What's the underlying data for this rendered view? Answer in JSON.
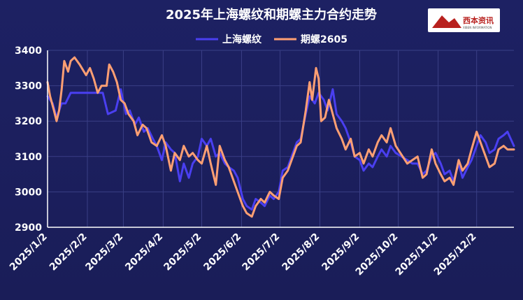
{
  "chart_data": {
    "type": "line",
    "title": "2025年上海螺纹和期螺主力合约走势",
    "ylim": [
      2900,
      3400
    ],
    "yticks": [
      2900,
      3000,
      3100,
      3200,
      3300,
      3400
    ],
    "xlim": [
      "2025-01-02",
      "2025-12-31"
    ],
    "xticks": [
      {
        "date": "2025-01-02",
        "label": "2025/1/2"
      },
      {
        "date": "2025-02-02",
        "label": "2025/2/2"
      },
      {
        "date": "2025-03-02",
        "label": "2025/3/2"
      },
      {
        "date": "2025-04-02",
        "label": "2025/4/2"
      },
      {
        "date": "2025-05-02",
        "label": "2025/5/2"
      },
      {
        "date": "2025-06-02",
        "label": "2025/6/2"
      },
      {
        "date": "2025-07-02",
        "label": "2025/7/2"
      },
      {
        "date": "2025-08-02",
        "label": "2025/8/2"
      },
      {
        "date": "2025-09-02",
        "label": "2025/9/2"
      },
      {
        "date": "2025-10-02",
        "label": "2025/10/2"
      },
      {
        "date": "2025-11-02",
        "label": "2025/11/2"
      },
      {
        "date": "2025-12-02",
        "label": "2025/12/2"
      }
    ],
    "grid": true,
    "legend_position": "top-center",
    "series": [
      {
        "name": "上海螺纹",
        "color": "#4a3ff0",
        "points": [
          [
            "2025-01-02",
            3270
          ],
          [
            "2025-01-06",
            3250
          ],
          [
            "2025-01-09",
            3210
          ],
          [
            "2025-01-13",
            3250
          ],
          [
            "2025-01-16",
            3250
          ],
          [
            "2025-01-20",
            3280
          ],
          [
            "2025-01-27",
            3280
          ],
          [
            "2025-02-07",
            3280
          ],
          [
            "2025-02-14",
            3280
          ],
          [
            "2025-02-18",
            3220
          ],
          [
            "2025-02-24",
            3230
          ],
          [
            "2025-02-28",
            3290
          ],
          [
            "2025-03-04",
            3220
          ],
          [
            "2025-03-07",
            3230
          ],
          [
            "2025-03-11",
            3190
          ],
          [
            "2025-03-14",
            3210
          ],
          [
            "2025-03-18",
            3170
          ],
          [
            "2025-03-21",
            3180
          ],
          [
            "2025-03-25",
            3150
          ],
          [
            "2025-03-28",
            3130
          ],
          [
            "2025-04-01",
            3090
          ],
          [
            "2025-04-04",
            3140
          ],
          [
            "2025-04-08",
            3120
          ],
          [
            "2025-04-11",
            3110
          ],
          [
            "2025-04-15",
            3030
          ],
          [
            "2025-04-18",
            3080
          ],
          [
            "2025-04-22",
            3040
          ],
          [
            "2025-04-25",
            3080
          ],
          [
            "2025-04-29",
            3100
          ],
          [
            "2025-05-02",
            3150
          ],
          [
            "2025-05-06",
            3130
          ],
          [
            "2025-05-09",
            3150
          ],
          [
            "2025-05-13",
            3100
          ],
          [
            "2025-05-16",
            3110
          ],
          [
            "2025-05-20",
            3080
          ],
          [
            "2025-05-23",
            3070
          ],
          [
            "2025-05-27",
            3060
          ],
          [
            "2025-05-30",
            3040
          ],
          [
            "2025-06-03",
            2980
          ],
          [
            "2025-06-06",
            2960
          ],
          [
            "2025-06-10",
            2950
          ],
          [
            "2025-06-13",
            2980
          ],
          [
            "2025-06-17",
            2970
          ],
          [
            "2025-06-20",
            2960
          ],
          [
            "2025-06-24",
            2990
          ],
          [
            "2025-06-27",
            2980
          ],
          [
            "2025-07-01",
            3000
          ],
          [
            "2025-07-04",
            3060
          ],
          [
            "2025-07-08",
            3070
          ],
          [
            "2025-07-11",
            3100
          ],
          [
            "2025-07-15",
            3140
          ],
          [
            "2025-07-18",
            3150
          ],
          [
            "2025-07-22",
            3220
          ],
          [
            "2025-07-25",
            3270
          ],
          [
            "2025-07-29",
            3250
          ],
          [
            "2025-08-01",
            3280
          ],
          [
            "2025-08-05",
            3260
          ],
          [
            "2025-08-08",
            3230
          ],
          [
            "2025-08-12",
            3290
          ],
          [
            "2025-08-15",
            3220
          ],
          [
            "2025-08-19",
            3200
          ],
          [
            "2025-08-22",
            3180
          ],
          [
            "2025-08-26",
            3140
          ],
          [
            "2025-08-29",
            3100
          ],
          [
            "2025-09-02",
            3090
          ],
          [
            "2025-09-05",
            3060
          ],
          [
            "2025-09-09",
            3080
          ],
          [
            "2025-09-12",
            3070
          ],
          [
            "2025-09-16",
            3100
          ],
          [
            "2025-09-19",
            3120
          ],
          [
            "2025-09-23",
            3100
          ],
          [
            "2025-09-26",
            3130
          ],
          [
            "2025-09-30",
            3110
          ],
          [
            "2025-10-09",
            3090
          ],
          [
            "2025-10-13",
            3080
          ],
          [
            "2025-10-17",
            3080
          ],
          [
            "2025-10-21",
            3050
          ],
          [
            "2025-10-24",
            3060
          ],
          [
            "2025-10-28",
            3100
          ],
          [
            "2025-10-31",
            3110
          ],
          [
            "2025-11-04",
            3080
          ],
          [
            "2025-11-07",
            3050
          ],
          [
            "2025-11-11",
            3060
          ],
          [
            "2025-11-14",
            3030
          ],
          [
            "2025-11-18",
            3080
          ],
          [
            "2025-11-21",
            3040
          ],
          [
            "2025-11-25",
            3070
          ],
          [
            "2025-11-28",
            3090
          ],
          [
            "2025-12-02",
            3130
          ],
          [
            "2025-12-05",
            3160
          ],
          [
            "2025-12-09",
            3140
          ],
          [
            "2025-12-12",
            3110
          ],
          [
            "2025-12-16",
            3120
          ],
          [
            "2025-12-19",
            3150
          ],
          [
            "2025-12-23",
            3160
          ],
          [
            "2025-12-26",
            3170
          ],
          [
            "2025-12-31",
            3130
          ]
        ]
      },
      {
        "name": "期螺2605",
        "color": "#ff9f73",
        "points": [
          [
            "2025-01-02",
            3310
          ],
          [
            "2025-01-04",
            3270
          ],
          [
            "2025-01-07",
            3230
          ],
          [
            "2025-01-09",
            3200
          ],
          [
            "2025-01-11",
            3230
          ],
          [
            "2025-01-13",
            3290
          ],
          [
            "2025-01-15",
            3370
          ],
          [
            "2025-01-18",
            3340
          ],
          [
            "2025-01-20",
            3370
          ],
          [
            "2025-01-23",
            3380
          ],
          [
            "2025-01-27",
            3360
          ],
          [
            "2025-02-01",
            3330
          ],
          [
            "2025-02-04",
            3350
          ],
          [
            "2025-02-07",
            3320
          ],
          [
            "2025-02-10",
            3280
          ],
          [
            "2025-02-13",
            3300
          ],
          [
            "2025-02-17",
            3300
          ],
          [
            "2025-02-19",
            3360
          ],
          [
            "2025-02-22",
            3340
          ],
          [
            "2025-02-25",
            3310
          ],
          [
            "2025-02-28",
            3260
          ],
          [
            "2025-03-03",
            3250
          ],
          [
            "2025-03-06",
            3220
          ],
          [
            "2025-03-10",
            3200
          ],
          [
            "2025-03-13",
            3160
          ],
          [
            "2025-03-17",
            3190
          ],
          [
            "2025-03-20",
            3180
          ],
          [
            "2025-03-24",
            3140
          ],
          [
            "2025-03-28",
            3130
          ],
          [
            "2025-04-01",
            3160
          ],
          [
            "2025-04-04",
            3130
          ],
          [
            "2025-04-08",
            3060
          ],
          [
            "2025-04-11",
            3110
          ],
          [
            "2025-04-15",
            3090
          ],
          [
            "2025-04-18",
            3130
          ],
          [
            "2025-04-22",
            3100
          ],
          [
            "2025-04-25",
            3110
          ],
          [
            "2025-04-29",
            3090
          ],
          [
            "2025-05-02",
            3080
          ],
          [
            "2025-05-06",
            3130
          ],
          [
            "2025-05-09",
            3080
          ],
          [
            "2025-05-13",
            3020
          ],
          [
            "2025-05-16",
            3130
          ],
          [
            "2025-05-20",
            3090
          ],
          [
            "2025-05-23",
            3070
          ],
          [
            "2025-05-27",
            3030
          ],
          [
            "2025-05-30",
            3000
          ],
          [
            "2025-06-03",
            2960
          ],
          [
            "2025-06-06",
            2940
          ],
          [
            "2025-06-10",
            2930
          ],
          [
            "2025-06-13",
            2960
          ],
          [
            "2025-06-17",
            2980
          ],
          [
            "2025-06-20",
            2970
          ],
          [
            "2025-06-24",
            3000
          ],
          [
            "2025-06-27",
            2990
          ],
          [
            "2025-07-01",
            2980
          ],
          [
            "2025-07-04",
            3040
          ],
          [
            "2025-07-08",
            3060
          ],
          [
            "2025-07-11",
            3090
          ],
          [
            "2025-07-15",
            3130
          ],
          [
            "2025-07-18",
            3140
          ],
          [
            "2025-07-22",
            3230
          ],
          [
            "2025-07-25",
            3310
          ],
          [
            "2025-07-27",
            3260
          ],
          [
            "2025-07-30",
            3350
          ],
          [
            "2025-08-01",
            3320
          ],
          [
            "2025-08-03",
            3200
          ],
          [
            "2025-08-06",
            3210
          ],
          [
            "2025-08-09",
            3260
          ],
          [
            "2025-08-12",
            3220
          ],
          [
            "2025-08-15",
            3180
          ],
          [
            "2025-08-19",
            3150
          ],
          [
            "2025-08-22",
            3120
          ],
          [
            "2025-08-26",
            3150
          ],
          [
            "2025-08-29",
            3100
          ],
          [
            "2025-09-02",
            3110
          ],
          [
            "2025-09-05",
            3080
          ],
          [
            "2025-09-09",
            3120
          ],
          [
            "2025-09-12",
            3100
          ],
          [
            "2025-09-16",
            3140
          ],
          [
            "2025-09-19",
            3160
          ],
          [
            "2025-09-23",
            3140
          ],
          [
            "2025-09-26",
            3180
          ],
          [
            "2025-09-30",
            3130
          ],
          [
            "2025-10-09",
            3080
          ],
          [
            "2025-10-13",
            3090
          ],
          [
            "2025-10-17",
            3100
          ],
          [
            "2025-10-21",
            3040
          ],
          [
            "2025-10-24",
            3050
          ],
          [
            "2025-10-28",
            3120
          ],
          [
            "2025-10-31",
            3080
          ],
          [
            "2025-11-04",
            3050
          ],
          [
            "2025-11-07",
            3030
          ],
          [
            "2025-11-11",
            3040
          ],
          [
            "2025-11-14",
            3020
          ],
          [
            "2025-11-18",
            3090
          ],
          [
            "2025-11-21",
            3060
          ],
          [
            "2025-11-25",
            3080
          ],
          [
            "2025-11-28",
            3120
          ],
          [
            "2025-12-02",
            3170
          ],
          [
            "2025-12-05",
            3140
          ],
          [
            "2025-12-09",
            3100
          ],
          [
            "2025-12-12",
            3070
          ],
          [
            "2025-12-16",
            3080
          ],
          [
            "2025-12-19",
            3120
          ],
          [
            "2025-12-23",
            3130
          ],
          [
            "2025-12-26",
            3120
          ],
          [
            "2025-12-31",
            3120
          ]
        ]
      }
    ]
  },
  "logo": {
    "name": "西本资讯",
    "subtitle": "XIBEN INFORMATION"
  }
}
